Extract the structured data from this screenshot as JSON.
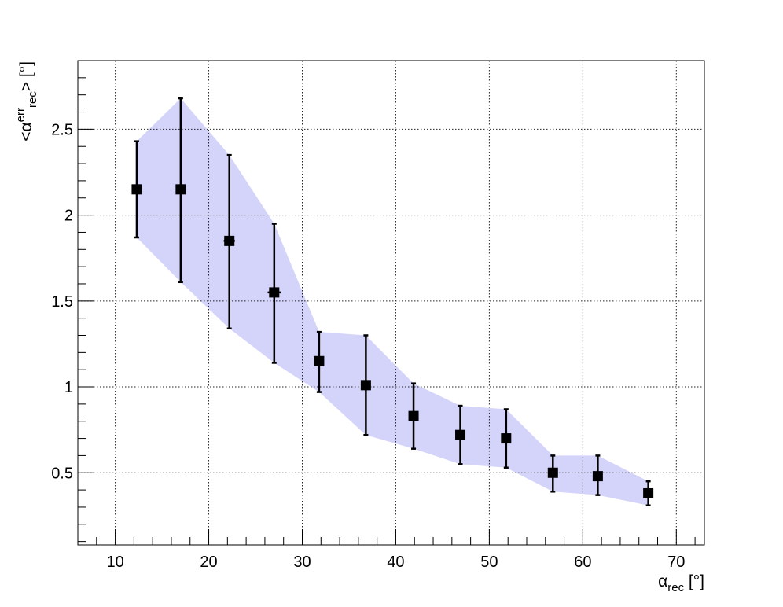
{
  "chart_data": {
    "type": "scatter",
    "x_axis": {
      "label_symbol": "α",
      "label_subscript": "rec",
      "label_unit": " [°]",
      "range": [
        6,
        73
      ],
      "ticks": [
        10,
        20,
        30,
        40,
        50,
        60,
        70
      ],
      "tick_labels": [
        "10",
        "20",
        "30",
        "40",
        "50",
        "60",
        "70"
      ]
    },
    "y_axis": {
      "label_prefix": "<",
      "label_symbol": "α",
      "label_superscript": "err",
      "label_subscript": "rec",
      "label_suffix": "> [°]",
      "range": [
        0.08,
        2.9
      ],
      "ticks": [
        0.5,
        1,
        1.5,
        2,
        2.5
      ],
      "tick_labels": [
        "0.5",
        "1",
        "1.5",
        "2",
        "2.5"
      ]
    },
    "grid": true,
    "colors": {
      "band": "#d4d4fa",
      "markers": "#000000",
      "grid": "#000000"
    },
    "points": [
      {
        "x": 12.3,
        "xerr": 0.5,
        "y": 2.15,
        "ylow": 1.87,
        "yhigh": 2.43,
        "band_low": 1.87,
        "band_high": 2.43
      },
      {
        "x": 17.0,
        "xerr": 0.3,
        "y": 2.15,
        "ylow": 1.61,
        "yhigh": 2.68,
        "band_low": 1.61,
        "band_high": 2.68
      },
      {
        "x": 22.2,
        "xerr": 0.6,
        "y": 1.85,
        "ylow": 1.34,
        "yhigh": 2.35,
        "band_low": 1.34,
        "band_high": 2.35
      },
      {
        "x": 27.0,
        "xerr": 0.7,
        "y": 1.55,
        "ylow": 1.14,
        "yhigh": 1.95,
        "band_low": 1.14,
        "band_high": 1.95
      },
      {
        "x": 31.8,
        "xerr": 0.3,
        "y": 1.15,
        "ylow": 0.97,
        "yhigh": 1.32,
        "band_low": 0.97,
        "band_high": 1.32
      },
      {
        "x": 36.8,
        "xerr": 0.3,
        "y": 1.01,
        "ylow": 0.72,
        "yhigh": 1.3,
        "band_low": 0.72,
        "band_high": 1.3
      },
      {
        "x": 41.9,
        "xerr": 0.3,
        "y": 0.83,
        "ylow": 0.64,
        "yhigh": 1.02,
        "band_low": 0.64,
        "band_high": 1.02
      },
      {
        "x": 46.9,
        "xerr": 0.3,
        "y": 0.72,
        "ylow": 0.55,
        "yhigh": 0.89,
        "band_low": 0.55,
        "band_high": 0.89
      },
      {
        "x": 51.8,
        "xerr": 0.3,
        "y": 0.7,
        "ylow": 0.53,
        "yhigh": 0.87,
        "band_low": 0.53,
        "band_high": 0.87
      },
      {
        "x": 56.8,
        "xerr": 0.3,
        "y": 0.5,
        "ylow": 0.39,
        "yhigh": 0.6,
        "band_low": 0.39,
        "band_high": 0.6
      },
      {
        "x": 61.6,
        "xerr": 0.3,
        "y": 0.48,
        "ylow": 0.37,
        "yhigh": 0.6,
        "band_low": 0.37,
        "band_high": 0.6
      },
      {
        "x": 67.0,
        "xerr": 0.3,
        "y": 0.38,
        "ylow": 0.31,
        "yhigh": 0.45,
        "band_low": 0.31,
        "band_high": 0.45
      }
    ]
  }
}
